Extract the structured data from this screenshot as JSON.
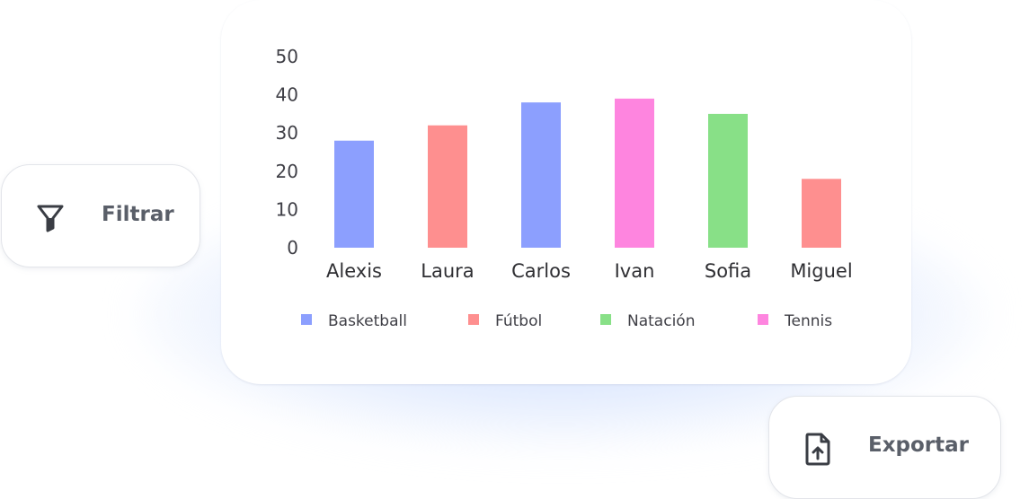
{
  "filter_button": {
    "label": "Filtrar",
    "icon": "filter-icon"
  },
  "export_button": {
    "label": "Exportar",
    "icon": "file-upload-icon"
  },
  "chart_data": {
    "type": "bar",
    "categories": [
      "Alexis",
      "Laura",
      "Carlos",
      "Ivan",
      "Sofia",
      "Miguel"
    ],
    "values": [
      28,
      32,
      38,
      39,
      35,
      18
    ],
    "bar_series": [
      "Basketball",
      "Fútbol",
      "Basketball",
      "Tennis",
      "Natación",
      "Fútbol"
    ],
    "legend": [
      {
        "name": "Basketball",
        "color": "#8c9ffe"
      },
      {
        "name": "Fútbol",
        "color": "#fe8f8f"
      },
      {
        "name": "Natación",
        "color": "#88e087"
      },
      {
        "name": "Tennis",
        "color": "#fe85df"
      }
    ],
    "legend_position": "bottom",
    "yticks": [
      "0",
      "10",
      "20",
      "30",
      "40",
      "50"
    ],
    "ylim": [
      0,
      50
    ],
    "grid": false,
    "title": "",
    "xlabel": "",
    "ylabel": ""
  }
}
